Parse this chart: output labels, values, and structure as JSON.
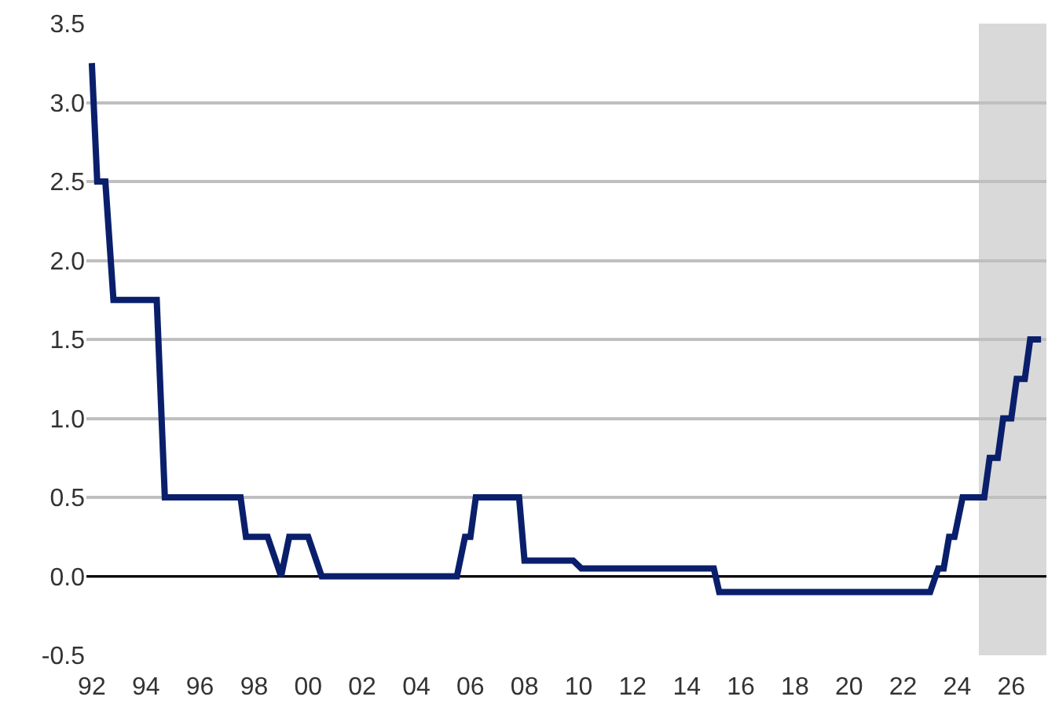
{
  "chart_data": {
    "type": "line",
    "x": [
      1992.0,
      1992.2,
      1992.5,
      1992.8,
      1994.4,
      1994.7,
      1997.5,
      1997.7,
      1998.5,
      1999.0,
      1999.3,
      2000.0,
      2000.5,
      2005.5,
      2005.8,
      2006.0,
      2006.2,
      2007.8,
      2008.0,
      2009.8,
      2010.1,
      2015.0,
      2015.2,
      2023.0,
      2023.3,
      2023.5,
      2023.7,
      2023.9,
      2024.2,
      2025.0,
      2025.2,
      2025.5,
      2025.7,
      2026.0,
      2026.2,
      2026.5,
      2026.7,
      2027.1
    ],
    "series": [
      {
        "color": "#0a1f6b",
        "values": [
          3.25,
          2.5,
          2.5,
          1.75,
          1.75,
          0.5,
          0.5,
          0.25,
          0.25,
          0,
          0.25,
          0.25,
          0,
          0,
          0.25,
          0.25,
          0.5,
          0.5,
          0.1,
          0.1,
          0.05,
          0.05,
          -0.1,
          -0.1,
          0.05,
          0.05,
          0.25,
          0.25,
          0.5,
          0.5,
          0.75,
          0.75,
          1.0,
          1.0,
          1.25,
          1.25,
          1.5,
          1.5
        ]
      }
    ],
    "xlim": [
      1991.8,
      2027.3
    ],
    "xticks": [
      {
        "value": 1992,
        "label": "92"
      },
      {
        "value": 1994,
        "label": "94"
      },
      {
        "value": 1996,
        "label": "96"
      },
      {
        "value": 1998,
        "label": "98"
      },
      {
        "value": 2000,
        "label": "00"
      },
      {
        "value": 2002,
        "label": "02"
      },
      {
        "value": 2004,
        "label": "04"
      },
      {
        "value": 2006,
        "label": "06"
      },
      {
        "value": 2008,
        "label": "08"
      },
      {
        "value": 2010,
        "label": "10"
      },
      {
        "value": 2012,
        "label": "12"
      },
      {
        "value": 2014,
        "label": "14"
      },
      {
        "value": 2016,
        "label": "16"
      },
      {
        "value": 2018,
        "label": "18"
      },
      {
        "value": 2020,
        "label": "20"
      },
      {
        "value": 2022,
        "label": "22"
      },
      {
        "value": 2024,
        "label": "24"
      },
      {
        "value": 2026,
        "label": "26"
      }
    ],
    "ylim": [
      -0.5,
      3.5
    ],
    "yticks": [
      {
        "value": -0.5,
        "label": "-0.5"
      },
      {
        "value": 0,
        "label": "0.0"
      },
      {
        "value": 0.5,
        "label": "0.5"
      },
      {
        "value": 1,
        "label": "1.0"
      },
      {
        "value": 1.5,
        "label": "1.5"
      },
      {
        "value": 2,
        "label": "2.0"
      },
      {
        "value": 2.5,
        "label": "2.5"
      },
      {
        "value": 3,
        "label": "3.0"
      },
      {
        "value": 3.5,
        "label": "3.5"
      }
    ],
    "grid": "y",
    "marker": "none",
    "line_style": "solid",
    "ref_lines": [
      {
        "axis": "y",
        "value": 0,
        "color": "#000000"
      }
    ],
    "bands": [
      {
        "axis": "x",
        "from": 2024.8,
        "to": 2027.3,
        "color": "#d9d9d9"
      }
    ]
  }
}
